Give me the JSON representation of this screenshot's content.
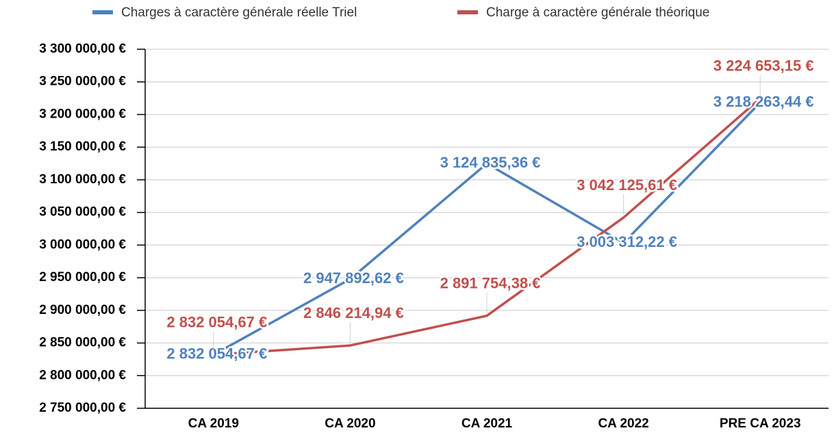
{
  "chart_data": {
    "type": "line",
    "categories": [
      "CA 2019",
      "CA 2020",
      "CA 2021",
      "CA 2022",
      "PRE CA 2023"
    ],
    "series": [
      {
        "name": "Charges à caractère générale réelle Triel",
        "color": "#4f81bd",
        "values": [
          2832054.67,
          2947892.62,
          3124835.36,
          3003312.22,
          3218263.44
        ],
        "value_labels": [
          "2 832 054,67 €",
          "2 947 892,62 €",
          "3 124 835,36 €",
          "3 003 312,22 €",
          "3 218 263,44 €"
        ]
      },
      {
        "name": "Charge à caractère générale théorique",
        "color": "#c0504d",
        "values": [
          2832054.67,
          2846214.94,
          2891754.38,
          3042125.61,
          3224653.15
        ],
        "value_labels": [
          "2 832 054,67 €",
          "2 846 214,94 €",
          "2 891 754,38 €",
          "3 042 125,61 €",
          "3 224 653,15 €"
        ]
      }
    ],
    "ylim": [
      2750000,
      3300000
    ],
    "yticks": [
      {
        "value": 2750000,
        "label": "2 750 000,00 €"
      },
      {
        "value": 2800000,
        "label": "2 800 000,00 €"
      },
      {
        "value": 2850000,
        "label": "2 850 000,00 €"
      },
      {
        "value": 2900000,
        "label": "2 900 000,00 €"
      },
      {
        "value": 2950000,
        "label": "2 950 000,00 €"
      },
      {
        "value": 3000000,
        "label": "3 000 000,00 €"
      },
      {
        "value": 3050000,
        "label": "3 050 000,00 €"
      },
      {
        "value": 3100000,
        "label": "3 100 000,00 €"
      },
      {
        "value": 3150000,
        "label": "3 150 000,00 €"
      },
      {
        "value": 3200000,
        "label": "3 200 000,00 €"
      },
      {
        "value": 3250000,
        "label": "3 250 000,00 €"
      },
      {
        "value": 3300000,
        "label": "3 300 000,00 €"
      }
    ],
    "grid": true,
    "legend": "top"
  }
}
